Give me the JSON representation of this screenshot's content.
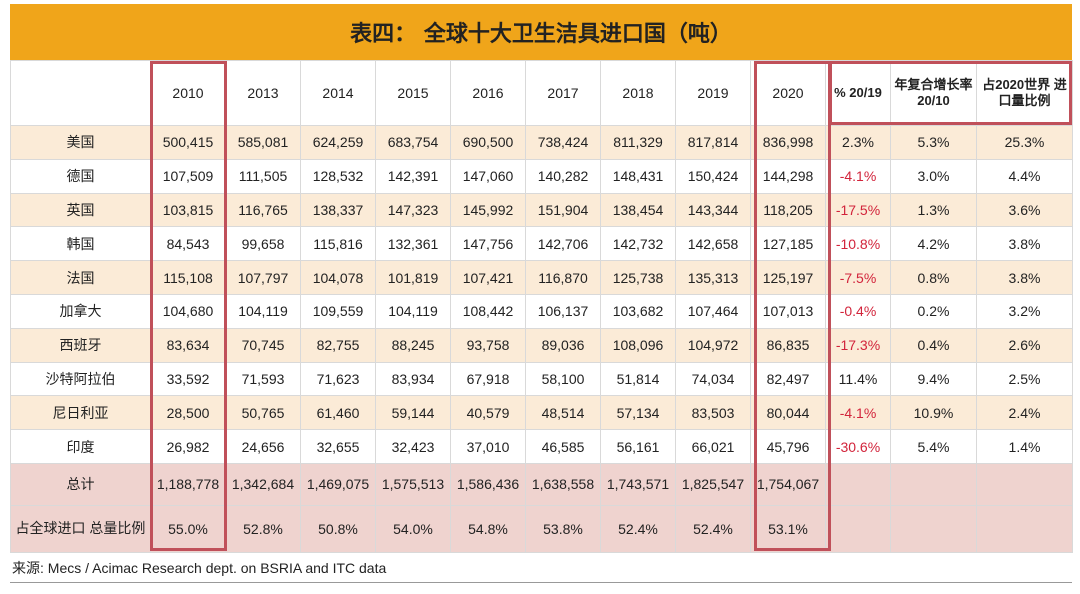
{
  "title": "表四： 全球十大卫生洁具进口国（吨）",
  "columns": [
    "2010",
    "2013",
    "2014",
    "2015",
    "2016",
    "2017",
    "2018",
    "2019",
    "2020",
    "% 20/19",
    "年复合增长率 20/10",
    "占2020世界 进口量比例"
  ],
  "rows": [
    {
      "country": "美国",
      "values": [
        "500,415",
        "585,081",
        "624,259",
        "683,754",
        "690,500",
        "738,424",
        "811,329",
        "817,814",
        "836,998"
      ],
      "pct": "2.3%",
      "cagr": "5.3%",
      "share": "25.3%"
    },
    {
      "country": "德国",
      "values": [
        "107,509",
        "111,505",
        "128,532",
        "142,391",
        "147,060",
        "140,282",
        "148,431",
        "150,424",
        "144,298"
      ],
      "pct": "-4.1%",
      "cagr": "3.0%",
      "share": "4.4%"
    },
    {
      "country": "英国",
      "values": [
        "103,815",
        "116,765",
        "138,337",
        "147,323",
        "145,992",
        "151,904",
        "138,454",
        "143,344",
        "118,205"
      ],
      "pct": "-17.5%",
      "cagr": "1.3%",
      "share": "3.6%"
    },
    {
      "country": "韩国",
      "values": [
        "84,543",
        "99,658",
        "115,816",
        "132,361",
        "147,756",
        "142,706",
        "142,732",
        "142,658",
        "127,185"
      ],
      "pct": "-10.8%",
      "cagr": "4.2%",
      "share": "3.8%"
    },
    {
      "country": "法国",
      "values": [
        "115,108",
        "107,797",
        "104,078",
        "101,819",
        "107,421",
        "116,870",
        "125,738",
        "135,313",
        "125,197"
      ],
      "pct": "-7.5%",
      "cagr": "0.8%",
      "share": "3.8%"
    },
    {
      "country": "加拿大",
      "values": [
        "104,680",
        "104,119",
        "109,559",
        "104,119",
        "108,442",
        "106,137",
        "103,682",
        "107,464",
        "107,013"
      ],
      "pct": "-0.4%",
      "cagr": "0.2%",
      "share": "3.2%"
    },
    {
      "country": "西班牙",
      "values": [
        "83,634",
        "70,745",
        "82,755",
        "88,245",
        "93,758",
        "89,036",
        "108,096",
        "104,972",
        "86,835"
      ],
      "pct": "-17.3%",
      "cagr": "0.4%",
      "share": "2.6%"
    },
    {
      "country": "沙特阿拉伯",
      "values": [
        "33,592",
        "71,593",
        "71,623",
        "83,934",
        "67,918",
        "58,100",
        "51,814",
        "74,034",
        "82,497"
      ],
      "pct": "11.4%",
      "cagr": "9.4%",
      "share": "2.5%"
    },
    {
      "country": "尼日利亚",
      "values": [
        "28,500",
        "50,765",
        "61,460",
        "59,144",
        "40,579",
        "48,514",
        "57,134",
        "83,503",
        "80,044"
      ],
      "pct": "-4.1%",
      "cagr": "10.9%",
      "share": "2.4%"
    },
    {
      "country": "印度",
      "values": [
        "26,982",
        "24,656",
        "32,655",
        "32,423",
        "37,010",
        "46,585",
        "56,161",
        "66,021",
        "45,796"
      ],
      "pct": "-30.6%",
      "cagr": "5.4%",
      "share": "1.4%"
    }
  ],
  "total": {
    "label": "总计",
    "values": [
      "1,188,778",
      "1,342,684",
      "1,469,075",
      "1,575,513",
      "1,586,436",
      "1,638,558",
      "1,743,571",
      "1,825,547",
      "1,754,067"
    ]
  },
  "share_of_world": {
    "label": "占全球进口 总量比例",
    "values": [
      "55.0%",
      "52.8%",
      "50.8%",
      "54.0%",
      "54.8%",
      "53.8%",
      "52.4%",
      "52.4%",
      "53.1%"
    ]
  },
  "source": "来源: Mecs / Acimac Research dept. on BSRIA and ITC data",
  "colors": {
    "title_bar": "#f0a51a",
    "row_tint": "#fbebd7",
    "total_tint": "#efd3cf",
    "highlight_border": "#c0505a",
    "negative_text": "#d2243b"
  }
}
